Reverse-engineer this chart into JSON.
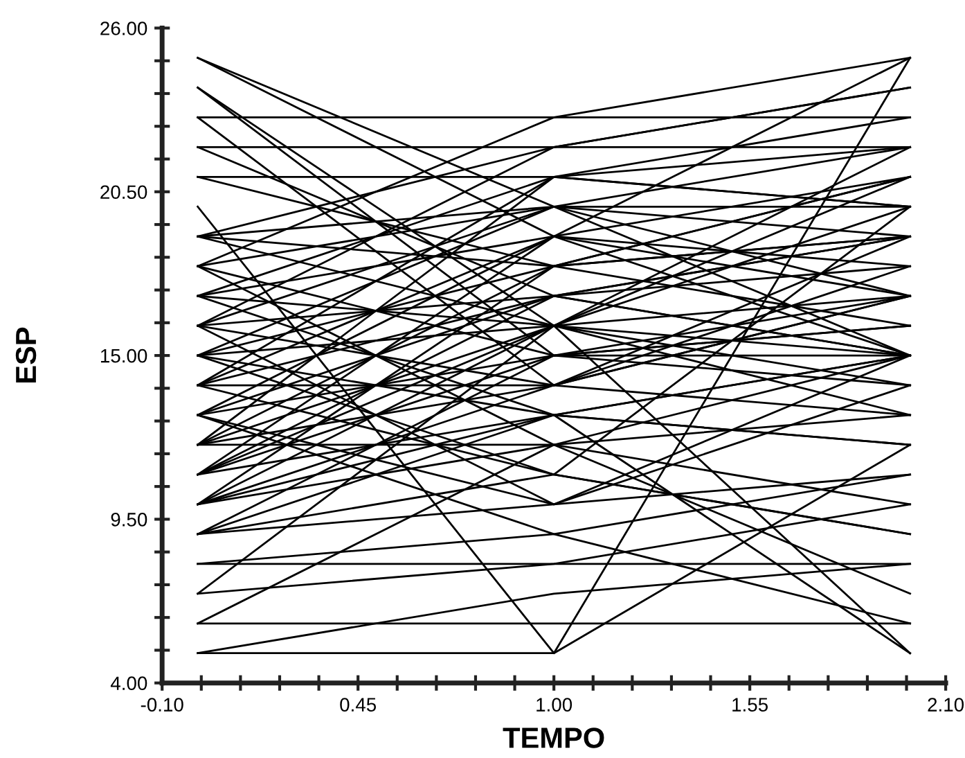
{
  "chart_data": {
    "type": "line",
    "xlabel": "TEMPO",
    "ylabel": "ESP",
    "color": "#000000",
    "marker": "none",
    "line_style": "solid",
    "grid": false,
    "x": [
      0,
      1,
      2
    ],
    "xlim": [
      -0.1,
      2.1
    ],
    "xticks": [
      {
        "value": -0.1,
        "label": "-0.10"
      },
      {
        "value": 0.01,
        "label": null
      },
      {
        "value": 0.12,
        "label": null
      },
      {
        "value": 0.23,
        "label": null
      },
      {
        "value": 0.34,
        "label": null
      },
      {
        "value": 0.45,
        "label": "0.45"
      },
      {
        "value": 0.56,
        "label": null
      },
      {
        "value": 0.67,
        "label": null
      },
      {
        "value": 0.78,
        "label": null
      },
      {
        "value": 0.89,
        "label": null
      },
      {
        "value": 1.0,
        "label": "1.00"
      },
      {
        "value": 1.11,
        "label": null
      },
      {
        "value": 1.22,
        "label": null
      },
      {
        "value": 1.33,
        "label": null
      },
      {
        "value": 1.44,
        "label": null
      },
      {
        "value": 1.55,
        "label": "1.55"
      },
      {
        "value": 1.66,
        "label": null
      },
      {
        "value": 1.77,
        "label": null
      },
      {
        "value": 1.88,
        "label": null
      },
      {
        "value": 1.99,
        "label": null
      },
      {
        "value": 2.1,
        "label": "2.10"
      }
    ],
    "ylim": [
      4,
      26
    ],
    "yticks": [
      {
        "value": 4,
        "label": "4.00"
      },
      {
        "value": 5.1,
        "label": null
      },
      {
        "value": 6.2,
        "label": null
      },
      {
        "value": 7.3,
        "label": null
      },
      {
        "value": 8.4,
        "label": null
      },
      {
        "value": 9.5,
        "label": "9.50"
      },
      {
        "value": 10.6,
        "label": null
      },
      {
        "value": 11.7,
        "label": null
      },
      {
        "value": 12.8,
        "label": null
      },
      {
        "value": 13.9,
        "label": null
      },
      {
        "value": 15,
        "label": "15.00"
      },
      {
        "value": 16.1,
        "label": null
      },
      {
        "value": 17.2,
        "label": null
      },
      {
        "value": 18.3,
        "label": null
      },
      {
        "value": 19.4,
        "label": null
      },
      {
        "value": 20.5,
        "label": "20.50"
      },
      {
        "value": 21.6,
        "label": null
      },
      {
        "value": 22.7,
        "label": null
      },
      {
        "value": 23.8,
        "label": null
      },
      {
        "value": 24.9,
        "label": null
      },
      {
        "value": 26,
        "label": "26.00"
      }
    ],
    "series": [
      {
        "values": [
          25,
          19,
          25
        ]
      },
      {
        "values": [
          24,
          16,
          22
        ]
      },
      {
        "values": [
          23,
          23,
          25
        ]
      },
      {
        "values": [
          22,
          22,
          22
        ]
      },
      {
        "values": [
          21,
          18,
          21
        ]
      },
      {
        "values": [
          20,
          5,
          12
        ]
      },
      {
        "values": [
          19,
          22,
          24
        ]
      },
      {
        "values": [
          18,
          23,
          23
        ]
      },
      {
        "values": [
          17,
          21,
          20
        ]
      },
      {
        "values": [
          16,
          20,
          19
        ]
      },
      {
        "values": [
          15,
          20,
          15
        ]
      },
      {
        "values": [
          14,
          17,
          15
        ]
      },
      {
        "values": [
          13,
          15,
          17
        ]
      },
      {
        "values": [
          12,
          14,
          18
        ]
      },
      {
        "values": [
          11,
          13,
          15
        ]
      },
      {
        "values": [
          10,
          12,
          13
        ]
      },
      {
        "values": [
          9,
          10,
          11
        ]
      },
      {
        "values": [
          8,
          9,
          11
        ]
      },
      {
        "values": [
          7,
          8,
          10
        ]
      },
      {
        "values": [
          6,
          6,
          6
        ]
      },
      {
        "values": [
          5,
          5,
          25
        ]
      },
      {
        "values": [
          5,
          7,
          8
        ]
      },
      {
        "values": [
          6,
          12,
          7
        ]
      },
      {
        "values": [
          7,
          16,
          5
        ]
      },
      {
        "values": [
          8,
          8,
          8
        ]
      },
      {
        "values": [
          9,
          11,
          20
        ]
      },
      {
        "values": [
          10,
          18,
          16
        ]
      },
      {
        "values": [
          11,
          15,
          14
        ]
      },
      {
        "values": [
          12,
          16,
          21
        ]
      },
      {
        "values": [
          13,
          19,
          17
        ]
      },
      {
        "values": [
          14,
          14,
          19
        ]
      },
      {
        "values": [
          15,
          11,
          9
        ]
      },
      {
        "values": [
          16,
          17,
          15
        ]
      },
      {
        "values": [
          17,
          13,
          12
        ]
      },
      {
        "values": [
          18,
          15,
          16
        ]
      },
      {
        "values": [
          19,
          20,
          22
        ]
      },
      {
        "values": [
          21,
          21,
          20
        ]
      },
      {
        "values": [
          22,
          17,
          19
        ]
      },
      {
        "values": [
          23,
          14,
          13
        ]
      },
      {
        "values": [
          24,
          15,
          15
        ]
      },
      {
        "values": [
          25,
          20,
          17
        ]
      },
      {
        "values": [
          19,
          18,
          21
        ]
      },
      {
        "values": [
          18,
          12,
          10
        ]
      },
      {
        "values": [
          17,
          19,
          18
        ]
      },
      {
        "values": [
          16,
          14,
          17
        ]
      },
      {
        "values": [
          15,
          16,
          20
        ]
      },
      {
        "values": [
          14,
          19,
          15
        ]
      },
      {
        "values": [
          13,
          10,
          14
        ]
      },
      {
        "values": [
          12,
          18,
          19
        ]
      },
      {
        "values": [
          11,
          16,
          15
        ]
      },
      {
        "values": [
          10,
          13,
          12
        ]
      },
      {
        "values": [
          9,
          15,
          16
        ]
      },
      {
        "values": [
          14,
          21,
          23
        ]
      },
      {
        "values": [
          15,
          13,
          5
        ]
      },
      {
        "values": [
          16,
          10,
          15
        ]
      },
      {
        "values": [
          17,
          16,
          17
        ]
      },
      {
        "values": [
          18,
          20,
          20
        ]
      },
      {
        "values": [
          19,
          16,
          13
        ]
      },
      {
        "values": [
          12,
          12,
          15
        ]
      },
      {
        "values": [
          13,
          17,
          18
        ]
      },
      {
        "values": [
          11,
          19,
          21
        ]
      },
      {
        "values": [
          10,
          14,
          17
        ]
      },
      {
        "values": [
          9,
          13,
          15
        ]
      },
      {
        "values": [
          15,
          18,
          19
        ]
      },
      {
        "values": [
          16,
          22,
          24
        ]
      },
      {
        "values": [
          14,
          11,
          9
        ]
      },
      {
        "values": [
          13,
          9,
          6
        ]
      },
      {
        "values": [
          12,
          21,
          22
        ]
      },
      {
        "values": [
          11,
          17,
          19
        ]
      },
      {
        "values": [
          10,
          16,
          14
        ]
      }
    ]
  }
}
